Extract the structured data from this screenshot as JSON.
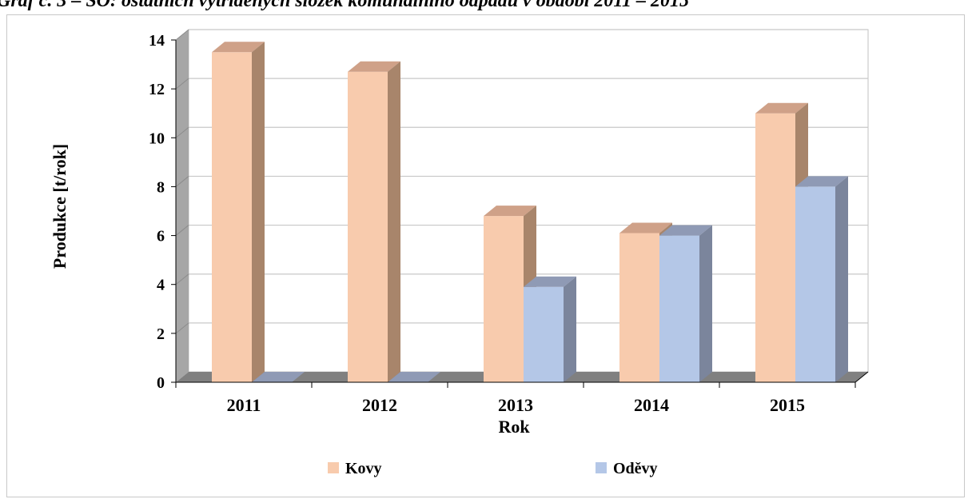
{
  "caption": "Graf č. 3 – SO: ostatních vytříděných složek komunálního odpadu v obdobi 2011 – 2015",
  "chart_data": {
    "type": "bar",
    "categories": [
      "2011",
      "2012",
      "2013",
      "2014",
      "2015"
    ],
    "series": [
      {
        "name": "Kovy",
        "values": [
          13.5,
          12.7,
          6.8,
          6.1,
          11.0
        ],
        "color": "#f8cbad",
        "side_color": "#a8856b",
        "top_color": "#cfa188"
      },
      {
        "name": "Oděvy",
        "values": [
          0,
          0,
          3.9,
          6.0,
          8.0
        ],
        "color": "#b4c7e7",
        "side_color": "#7b859c",
        "top_color": "#8f9ab5"
      }
    ],
    "xlabel": "Rok",
    "ylabel": "Produkce [t/rok]",
    "ylim": [
      0,
      14
    ],
    "yticks": [
      0,
      2,
      4,
      6,
      8,
      10,
      12,
      14
    ],
    "grid": true,
    "legend_position": "bottom",
    "three_d": true
  }
}
